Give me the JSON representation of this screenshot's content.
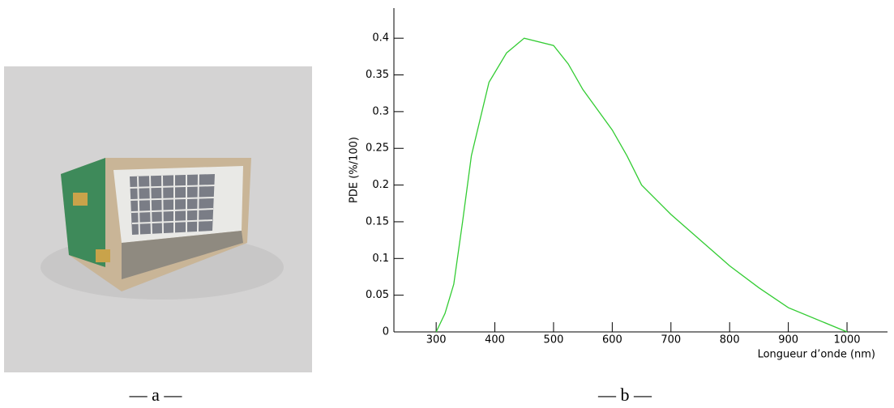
{
  "captions": [
    "— a —",
    "— b —"
  ],
  "chart_data": {
    "type": "line",
    "y_label": "PDE (%/100)",
    "x_label": "Longueur d’onde (nm)",
    "x": [
      300,
      315,
      330,
      345,
      360,
      390,
      420,
      450,
      500,
      525,
      550,
      600,
      625,
      650,
      700,
      750,
      800,
      850,
      900,
      1000
    ],
    "series": [
      {
        "color": "#33cc33",
        "values": [
          0,
          0.025,
          0.065,
          0.15,
          0.24,
          0.34,
          0.38,
          0.4,
          0.39,
          0.365,
          0.33,
          0.275,
          0.24,
          0.2,
          0.16,
          0.125,
          0.09,
          0.06,
          0.033,
          0
        ]
      }
    ],
    "xlim": [
      228,
      1069
    ],
    "xticks": [
      300,
      400,
      500,
      600,
      700,
      800,
      900,
      1000
    ],
    "ylim": [
      0,
      0.441
    ],
    "yticks": [
      0,
      0.05,
      0.1,
      0.15,
      0.2,
      0.25,
      0.3,
      0.35,
      0.4
    ]
  }
}
